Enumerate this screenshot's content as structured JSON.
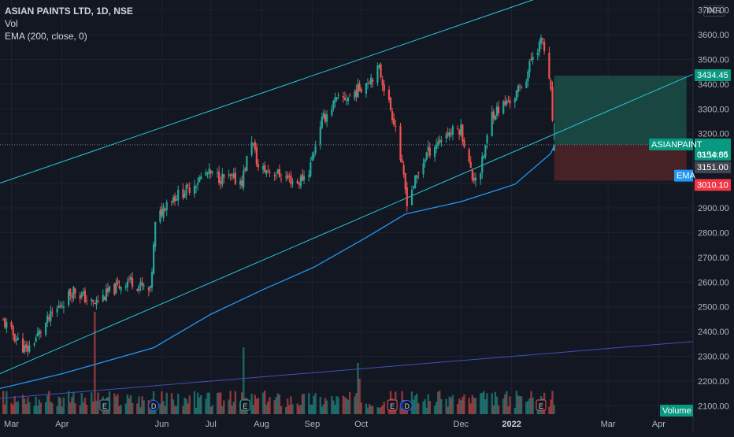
{
  "legend": {
    "title": "ASIAN PAINTS LTD, 1D, NSE",
    "vol": "Vol",
    "ema": "EMA (200, close, 0)"
  },
  "currency": "INR",
  "tags": {
    "target_price": "3434.45",
    "symbol": "ASIANPAINT",
    "last_price": "3154.85",
    "countdown": "03:10:50",
    "ema_label": "EMA",
    "ema_value": "3151.00",
    "stop_price": "3010.10",
    "volume_label": "Volume"
  },
  "colors": {
    "background": "#131722",
    "up": "#26a69a",
    "down": "#ef5350",
    "ema": "#2196f3",
    "channel": "#26c6da",
    "trendline": "#3f51b5",
    "target_zone": "#1b4b45",
    "stop_zone": "#4d2227"
  },
  "event_markers": [
    {
      "label": "E",
      "date": "2021-04-27",
      "kind": "earnings"
    },
    {
      "label": "D",
      "date": "2021-05-27",
      "kind": "dividend"
    },
    {
      "label": "E",
      "date": "2021-07-22",
      "kind": "earnings"
    },
    {
      "label": "D",
      "date": "2021-10-28",
      "kind": "dividend"
    },
    {
      "label": "E",
      "date": "2021-10-20",
      "kind": "earnings"
    },
    {
      "label": "D",
      "date": "2021-10-29",
      "kind": "dividend"
    },
    {
      "label": "E",
      "date": "2022-01-19",
      "kind": "earnings"
    }
  ],
  "chart_data": {
    "type": "line",
    "title": "ASIAN PAINTS LTD, 1D, NSE",
    "xlabel": "",
    "ylabel": "",
    "x_ticks": [
      "Mar",
      "Apr",
      "Jun",
      "Jul",
      "Aug",
      "Sep",
      "Oct",
      "Dec",
      "2022",
      "Mar",
      "Apr"
    ],
    "x_tick_dates": [
      "2021-03-01",
      "2021-04-01",
      "2021-06-01",
      "2021-07-01",
      "2021-08-01",
      "2021-09-01",
      "2021-10-01",
      "2021-12-01",
      "2022-01-01",
      "2022-03-01",
      "2022-04-01"
    ],
    "y_ticks": [
      3700,
      3600,
      3500,
      3400,
      3300,
      3200,
      3000,
      2900,
      2800,
      2700,
      2600,
      2500,
      2400,
      2300,
      2200,
      2100
    ],
    "ylim": [
      2060,
      3740
    ],
    "xlim": [
      "2021-02-22",
      "2022-04-22"
    ],
    "series": [
      {
        "name": "ASIANPAINT",
        "x": [
          "2021-02-24",
          "2021-03-10",
          "2021-03-25",
          "2021-04-08",
          "2021-04-20",
          "2021-04-30",
          "2021-05-12",
          "2021-05-25",
          "2021-05-28",
          "2021-06-04",
          "2021-06-16",
          "2021-06-28",
          "2021-07-08",
          "2021-07-20",
          "2021-07-26",
          "2021-07-30",
          "2021-08-10",
          "2021-08-23",
          "2021-08-30",
          "2021-09-06",
          "2021-09-15",
          "2021-09-24",
          "2021-10-01",
          "2021-10-12",
          "2021-10-22",
          "2021-10-29",
          "2021-11-10",
          "2021-11-22",
          "2021-12-01",
          "2021-12-08",
          "2021-12-13",
          "2021-12-20",
          "2022-01-03",
          "2022-01-10",
          "2022-01-14",
          "2022-01-20",
          "2022-01-25",
          "2022-01-27"
        ],
        "values": [
          2440,
          2320,
          2460,
          2570,
          2510,
          2560,
          2610,
          2560,
          2830,
          2930,
          2970,
          3040,
          3020,
          3010,
          3180,
          3060,
          3040,
          3000,
          3050,
          3240,
          3330,
          3350,
          3390,
          3460,
          3230,
          2930,
          3120,
          3200,
          3220,
          3020,
          3050,
          3280,
          3350,
          3430,
          3520,
          3580,
          3360,
          3155
        ]
      },
      {
        "name": "EMA",
        "x": [
          "2021-02-22",
          "2021-04-01",
          "2021-05-27",
          "2021-07-01",
          "2021-08-02",
          "2021-09-02",
          "2021-10-04",
          "2021-10-28",
          "2021-12-01",
          "2022-01-03",
          "2022-01-25",
          "2022-01-27"
        ],
        "values": [
          2170,
          2230,
          2335,
          2470,
          2570,
          2660,
          2780,
          2875,
          2925,
          2995,
          3120,
          3151
        ]
      }
    ],
    "trendlines": [
      {
        "name": "",
        "x": [
          "2021-02-22",
          "2022-01-27"
        ],
        "values": [
          3000,
          3770
        ]
      },
      {
        "name": "",
        "x": [
          "2021-02-22",
          "2022-04-22"
        ],
        "values": [
          2230,
          3440
        ]
      },
      {
        "name": "",
        "x": [
          "2021-02-22",
          "2022-04-22"
        ],
        "values": [
          2130,
          2360
        ]
      }
    ],
    "position": {
      "entry": 3154.85,
      "target": 3434.45,
      "stop": 3010.1,
      "start": "2022-01-27",
      "end": "2022-04-18"
    },
    "volume_bars": 160,
    "grid": true,
    "legend": "top-left"
  }
}
